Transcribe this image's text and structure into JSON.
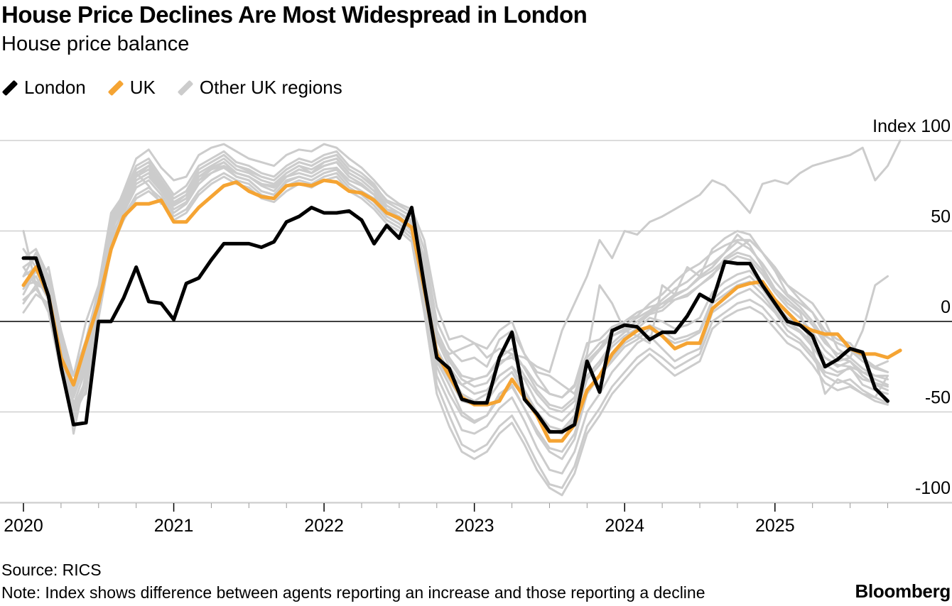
{
  "title": "House Price Declines Are Most Widespread in London",
  "subtitle": "House price balance",
  "legend": [
    {
      "label": "London",
      "color": "#000000"
    },
    {
      "label": "UK",
      "color": "#f5a433"
    },
    {
      "label": "Other UK regions",
      "color": "#cccccc"
    }
  ],
  "source": "Source: RICS",
  "note": "Note: Index shows difference between agents reporting an increase and those reporting a decline",
  "brand": "Bloomberg",
  "chart_data": {
    "type": "line",
    "ylim": [
      -100,
      100
    ],
    "xlim": [
      "2020-01",
      "2025-12"
    ],
    "y_ticks": [
      {
        "value": 100,
        "label": "Index 100"
      },
      {
        "value": 50,
        "label": "50"
      },
      {
        "value": 0,
        "label": "0"
      },
      {
        "value": -50,
        "label": "-50"
      },
      {
        "value": -100,
        "label": "-100"
      }
    ],
    "x_ticks": [
      "2020",
      "2021",
      "2022",
      "2023",
      "2024",
      "2025"
    ],
    "grid": true,
    "legend_position": "top-left",
    "series": [
      {
        "name": "London",
        "color": "#000000",
        "start": "2020-01",
        "values": [
          35,
          35,
          14,
          -25,
          -57,
          -56,
          0,
          0,
          13,
          30,
          11,
          10,
          1,
          21,
          24,
          34,
          43,
          43,
          43,
          41,
          44,
          55,
          58,
          63,
          60,
          60,
          61,
          56,
          43,
          53,
          46,
          63,
          20,
          -20,
          -26,
          -43,
          -45,
          -45,
          -20,
          -6,
          -43,
          -51,
          -61,
          -61,
          -57,
          -22,
          -39,
          -5,
          -2,
          -3,
          -10,
          -6,
          -6,
          3,
          15,
          11,
          33,
          32,
          32,
          20,
          10,
          0,
          -2,
          -8,
          -25,
          -21,
          -15,
          -17,
          -37,
          -44
        ]
      },
      {
        "name": "UK",
        "color": "#f5a433",
        "start": "2020-01",
        "values": [
          20,
          30,
          14,
          -20,
          -35,
          -12,
          10,
          40,
          58,
          65,
          65,
          67,
          55,
          55,
          63,
          69,
          75,
          77,
          72,
          69,
          68,
          75,
          76,
          75,
          78,
          77,
          72,
          71,
          67,
          60,
          57,
          52,
          18,
          -18,
          -30,
          -42,
          -46,
          -46,
          -44,
          -32,
          -42,
          -52,
          -66,
          -66,
          -57,
          -38,
          -30,
          -18,
          -10,
          -5,
          -3,
          -8,
          -15,
          -12,
          -12,
          7,
          13,
          19,
          21,
          22,
          12,
          5,
          -2,
          -5,
          -7,
          -7,
          -15,
          -18,
          -18,
          -20,
          -16
        ]
      },
      {
        "name": "",
        "color": "#cccccc",
        "start": "2020-01",
        "values": [
          50,
          20,
          30,
          -5,
          -30,
          0,
          20,
          60,
          70,
          82,
          75,
          65,
          65,
          70,
          80,
          85,
          88,
          82,
          80,
          76,
          75,
          80,
          82,
          80,
          84,
          85,
          78,
          75,
          70,
          62,
          60,
          55,
          30,
          -10,
          -25,
          -35,
          -40,
          -38,
          -30,
          -25,
          -32,
          -45,
          -52,
          -55,
          -48,
          -25,
          -15,
          -5,
          0,
          5,
          8,
          10,
          12,
          15,
          20,
          25,
          35,
          40,
          45,
          38,
          28,
          15,
          10,
          5,
          -5,
          -10,
          -12,
          -20,
          -25,
          -28
        ]
      },
      {
        "name": "",
        "color": "#cccccc",
        "start": "2020-01",
        "values": [
          30,
          35,
          20,
          -15,
          -45,
          -40,
          5,
          50,
          66,
          80,
          84,
          76,
          68,
          72,
          84,
          88,
          92,
          86,
          83,
          80,
          78,
          84,
          88,
          86,
          90,
          92,
          84,
          80,
          75,
          67,
          64,
          60,
          40,
          0,
          -15,
          -22,
          -20,
          -25,
          -10,
          -5,
          -18,
          -28,
          -30,
          -35,
          -40,
          -20,
          -12,
          -8,
          -5,
          -2,
          5,
          10,
          15,
          18,
          25,
          30,
          38,
          48,
          42,
          30,
          18,
          10,
          5,
          -15,
          -40,
          -32,
          -35,
          -40,
          -42,
          -30
        ]
      },
      {
        "name": "",
        "color": "#cccccc",
        "start": "2020-01",
        "values": [
          10,
          20,
          5,
          -28,
          -55,
          -30,
          8,
          48,
          60,
          74,
          78,
          70,
          60,
          65,
          76,
          82,
          85,
          80,
          78,
          72,
          70,
          77,
          80,
          78,
          82,
          84,
          76,
          72,
          68,
          58,
          54,
          48,
          15,
          -30,
          -45,
          -60,
          -62,
          -58,
          -48,
          -42,
          -55,
          -70,
          -82,
          -84,
          -72,
          -50,
          -40,
          -28,
          -20,
          -12,
          -8,
          -15,
          -22,
          -18,
          -15,
          5,
          10,
          15,
          18,
          12,
          5,
          -5,
          -10,
          -18,
          -28,
          -30,
          -25,
          -35,
          -38,
          -40
        ]
      },
      {
        "name": "",
        "color": "#cccccc",
        "start": "2020-01",
        "values": [
          25,
          38,
          22,
          -10,
          -62,
          -28,
          12,
          55,
          72,
          90,
          95,
          85,
          78,
          80,
          92,
          96,
          98,
          94,
          90,
          88,
          86,
          92,
          95,
          94,
          98,
          96,
          90,
          85,
          78,
          70,
          65,
          62,
          45,
          8,
          -10,
          -8,
          -12,
          -15,
          -5,
          0,
          -18,
          -30,
          -40,
          -42,
          -35,
          -12,
          -10,
          -3,
          0,
          3,
          10,
          15,
          22,
          28,
          32,
          38,
          42,
          45,
          45,
          38,
          28,
          20,
          15,
          10,
          0,
          -15,
          -20,
          -5,
          20,
          25
        ]
      },
      {
        "name": "",
        "color": "#cccccc",
        "start": "2020-01",
        "values": [
          15,
          28,
          15,
          -20,
          -50,
          -35,
          6,
          46,
          62,
          76,
          80,
          72,
          64,
          68,
          78,
          84,
          86,
          82,
          80,
          75,
          72,
          80,
          84,
          82,
          86,
          88,
          80,
          76,
          70,
          60,
          56,
          50,
          22,
          -22,
          -35,
          -50,
          -55,
          -52,
          -40,
          -35,
          -48,
          -62,
          -72,
          -76,
          -65,
          -40,
          -30,
          -20,
          -12,
          -8,
          -2,
          -5,
          -10,
          -8,
          -5,
          12,
          18,
          22,
          25,
          18,
          8,
          0,
          -5,
          -12,
          -20,
          -24,
          -25,
          -28,
          -32,
          -35
        ]
      },
      {
        "name": "",
        "color": "#cccccc",
        "start": "2020-01",
        "values": [
          40,
          30,
          25,
          -8,
          -35,
          -15,
          15,
          58,
          70,
          86,
          90,
          80,
          70,
          75,
          86,
          90,
          94,
          88,
          86,
          82,
          80,
          86,
          90,
          88,
          92,
          94,
          86,
          82,
          76,
          66,
          62,
          58,
          35,
          -5,
          -20,
          -30,
          -32,
          -30,
          -20,
          -15,
          -26,
          -38,
          -46,
          -48,
          -42,
          -22,
          -15,
          -6,
          -2,
          2,
          6,
          12,
          18,
          22,
          28,
          32,
          38,
          44,
          40,
          32,
          22,
          14,
          8,
          0,
          -10,
          -20,
          -22,
          -30,
          -35,
          -38
        ]
      },
      {
        "name": "",
        "color": "#cccccc",
        "start": "2020-01",
        "values": [
          5,
          15,
          10,
          -18,
          -48,
          -32,
          5,
          44,
          58,
          70,
          74,
          68,
          58,
          62,
          72,
          78,
          82,
          78,
          76,
          70,
          68,
          75,
          78,
          76,
          80,
          82,
          74,
          70,
          64,
          56,
          52,
          46,
          10,
          -35,
          -52,
          -68,
          -72,
          -68,
          -58,
          -52,
          -64,
          -78,
          -90,
          -92,
          -80,
          -58,
          -48,
          -36,
          -28,
          -20,
          -15,
          -20,
          -26,
          -22,
          -18,
          0,
          5,
          10,
          12,
          8,
          0,
          -8,
          -12,
          -20,
          -30,
          -34,
          -32,
          -38,
          -42,
          -45
        ]
      },
      {
        "name": "",
        "color": "#cccccc",
        "start": "2020-01",
        "values": [
          30,
          20,
          18,
          -12,
          -40,
          -20,
          10,
          52,
          66,
          80,
          84,
          74,
          66,
          70,
          82,
          86,
          90,
          84,
          82,
          78,
          76,
          82,
          86,
          84,
          88,
          90,
          82,
          78,
          72,
          64,
          60,
          54,
          28,
          -15,
          -28,
          -40,
          -44,
          -40,
          -30,
          -25,
          -38,
          -50,
          -58,
          -60,
          -52,
          -30,
          -22,
          -12,
          -6,
          -2,
          4,
          6,
          12,
          14,
          20,
          26,
          32,
          36,
          34,
          26,
          16,
          8,
          2,
          -6,
          -16,
          -22,
          -20,
          -26,
          -30,
          -32
        ]
      },
      {
        "name": "",
        "color": "#cccccc",
        "start": "2020-01",
        "values": [
          20,
          25,
          12,
          -25,
          -52,
          -38,
          2,
          40,
          56,
          68,
          72,
          66,
          56,
          60,
          70,
          76,
          80,
          76,
          74,
          68,
          66,
          72,
          76,
          74,
          78,
          80,
          72,
          68,
          62,
          54,
          50,
          44,
          5,
          -40,
          -58,
          -72,
          -76,
          -72,
          -62,
          -56,
          -68,
          -82,
          -92,
          -96,
          -84,
          -62,
          -52,
          -40,
          -32,
          -24,
          -18,
          -24,
          -30,
          -26,
          -22,
          -4,
          2,
          6,
          8,
          4,
          -4,
          -12,
          -16,
          -24,
          -34,
          -38,
          -36,
          -40,
          -44,
          -46
        ]
      },
      {
        "name": "",
        "color": "#cccccc",
        "start": "2020-01",
        "values": [
          12,
          18,
          8,
          -22,
          -46,
          -26,
          8,
          50,
          64,
          78,
          82,
          72,
          62,
          66,
          78,
          82,
          86,
          80,
          78,
          72,
          70,
          78,
          80,
          78,
          82,
          84,
          76,
          72,
          66,
          58,
          54,
          48,
          18,
          -25,
          -40,
          -52,
          -56,
          -52,
          -42,
          -36,
          -48,
          -60,
          -70,
          -72,
          -62,
          -40,
          -30,
          -22,
          -14,
          -10,
          -4,
          -8,
          -12,
          -10,
          -6,
          10,
          15,
          20,
          22,
          15,
          6,
          -2,
          -6,
          -14,
          -24,
          -28,
          -26,
          -32,
          -34,
          -36
        ]
      },
      {
        "name": "",
        "color": "#cccccc",
        "start": "2020-01",
        "values": [
          35,
          40,
          25,
          -5,
          -30,
          -10,
          18,
          56,
          68,
          84,
          88,
          78,
          68,
          72,
          84,
          88,
          92,
          86,
          84,
          80,
          78,
          84,
          88,
          86,
          90,
          92,
          84,
          80,
          74,
          64,
          60,
          56,
          32,
          -8,
          -22,
          -32,
          -36,
          -34,
          -24,
          -18,
          -30,
          -40,
          -48,
          -50,
          -44,
          -24,
          -16,
          -8,
          -4,
          0,
          5,
          8,
          14,
          18,
          24,
          28,
          34,
          38,
          36,
          28,
          18,
          12,
          6,
          -2,
          -12,
          -18,
          -16,
          -22,
          -26,
          -28
        ]
      },
      {
        "name": "",
        "color": "#cccccc",
        "start": "2020-01",
        "values": [
          20,
          22,
          15,
          -15,
          -42,
          -22,
          12,
          54,
          68,
          82,
          86,
          76,
          66,
          70,
          80,
          84,
          88,
          82,
          80,
          76,
          74,
          80,
          84,
          82,
          86,
          88,
          80,
          76,
          70,
          62,
          58,
          52,
          35,
          -15,
          -30,
          -35,
          -32,
          -30,
          -22,
          -20,
          -25,
          -35,
          -40,
          -42,
          -36,
          -18,
          20,
          10,
          -5,
          -8,
          -12,
          20,
          15,
          30,
          25,
          40,
          46,
          50,
          48,
          38,
          30,
          20,
          12,
          5,
          -8,
          -12,
          -15,
          -20,
          -25,
          -22
        ]
      },
      {
        "name": "",
        "color": "#cccccc",
        "start": "2020-01",
        "values": [
          18,
          28,
          16,
          -12,
          -38,
          -18,
          14,
          52,
          66,
          80,
          86,
          76,
          64,
          68,
          80,
          84,
          88,
          82,
          80,
          76,
          74,
          82,
          86,
          82,
          88,
          90,
          82,
          78,
          72,
          62,
          58,
          52,
          30,
          -10,
          -18,
          -15,
          -12,
          -20,
          -15,
          -18,
          -20,
          -25,
          -28,
          -5,
          10,
          25,
          45,
          35,
          50,
          48,
          55,
          58,
          62,
          66,
          70,
          78,
          75,
          68,
          60,
          76,
          78,
          76,
          82,
          86,
          88,
          90,
          92,
          96,
          78,
          86,
          100
        ]
      },
      {
        "name": "",
        "color": "#cccccc",
        "start": "2020-01",
        "values": [
          25,
          30,
          20,
          -10,
          -40,
          -25,
          8,
          50,
          64,
          78,
          82,
          74,
          64,
          68,
          80,
          84,
          88,
          82,
          80,
          76,
          74,
          80,
          84,
          82,
          86,
          88,
          80,
          76,
          70,
          62,
          58,
          52,
          25,
          -20,
          -32,
          -44,
          -46,
          -44,
          -34,
          -28,
          -40,
          -52,
          -60,
          -62,
          -54,
          -32,
          -24,
          -14,
          -8,
          -4,
          2,
          0,
          -4,
          -2,
          2,
          16,
          22,
          26,
          28,
          20,
          10,
          2,
          -2,
          -10,
          -20,
          -25,
          -22,
          -28,
          -30,
          -30
        ]
      }
    ]
  }
}
